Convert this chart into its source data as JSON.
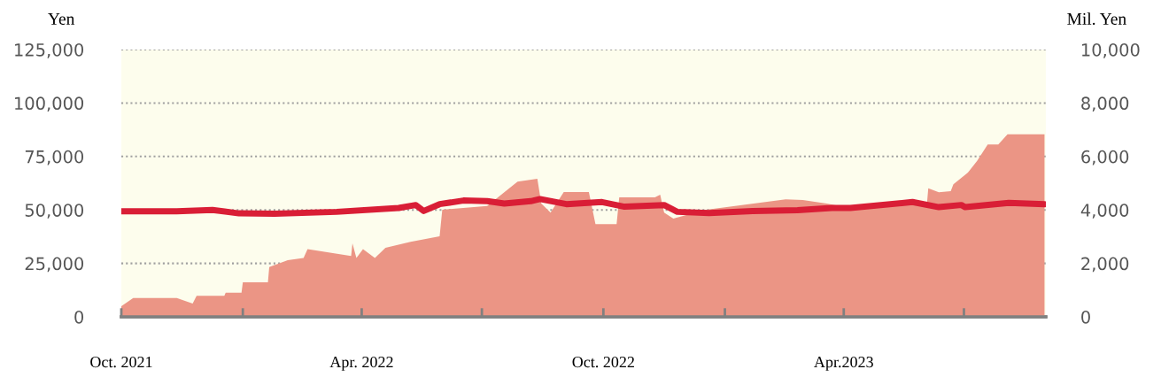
{
  "chart_data": {
    "type": "area",
    "ylabel": "Yen",
    "y2label": "Mil. Yen",
    "xlim": [
      "2021-10-01",
      "2023-09-01"
    ],
    "xticks": [
      {
        "value": "2021-10-01",
        "label": "Oct. 2021"
      },
      {
        "value": "2022-01-01",
        "label": null
      },
      {
        "value": "2022-04-01",
        "label": "Apr. 2022"
      },
      {
        "value": "2022-07-01",
        "label": null
      },
      {
        "value": "2022-10-01",
        "label": "Oct. 2022"
      },
      {
        "value": "2023-01-01",
        "label": null
      },
      {
        "value": "2023-04-01",
        "label": "Apr.2023"
      },
      {
        "value": "2023-07-01",
        "label": null
      }
    ],
    "ylim": [
      0,
      125000
    ],
    "yticks": [
      {
        "value": 0,
        "label": "0"
      },
      {
        "value": 25000,
        "label": "25,000"
      },
      {
        "value": 50000,
        "label": "50,000"
      },
      {
        "value": 75000,
        "label": "75,000"
      },
      {
        "value": 100000,
        "label": "100,000"
      },
      {
        "value": 125000,
        "label": "125,000"
      }
    ],
    "y2lim": [
      0,
      10000
    ],
    "y2ticks": [
      {
        "value": 0,
        "label": "0"
      },
      {
        "value": 2000,
        "label": "2,000"
      },
      {
        "value": 4000,
        "label": "4,000"
      },
      {
        "value": 6000,
        "label": "6,000"
      },
      {
        "value": 8000,
        "label": "8,000"
      },
      {
        "value": 10000,
        "label": "10,000"
      }
    ],
    "grid": "y",
    "legend": false,
    "series": [
      {
        "axis": "y2",
        "color": "#eb9585",
        "x": [
          "2021-10-01",
          "2021-10-10",
          "2021-11-12",
          "2021-11-24",
          "2021-11-27",
          "2021-12-18",
          "2021-12-19",
          "2021-12-31",
          "2022-01-01",
          "2022-01-20",
          "2022-01-21",
          "2022-02-04",
          "2022-02-16",
          "2022-02-19",
          "2022-03-24",
          "2022-03-25",
          "2022-03-28",
          "2022-04-02",
          "2022-04-11",
          "2022-04-19",
          "2022-05-08",
          "2022-05-30",
          "2022-06-01",
          "2022-07-05",
          "2022-07-28",
          "2022-08-12",
          "2022-08-15",
          "2022-08-22",
          "2022-09-01",
          "2022-09-20",
          "2022-09-25",
          "2022-10-11",
          "2022-10-13",
          "2022-11-09",
          "2022-11-13",
          "2022-11-16",
          "2022-11-23",
          "2022-12-18",
          "2023-02-16",
          "2023-03-01",
          "2023-03-19",
          "2023-04-06",
          "2023-06-03",
          "2023-06-04",
          "2023-06-12",
          "2023-06-21",
          "2023-06-23",
          "2023-07-04",
          "2023-07-11",
          "2023-07-19",
          "2023-07-27",
          "2023-08-03",
          "2023-08-31"
        ],
        "values": [
          400,
          700,
          700,
          500,
          790,
          790,
          900,
          900,
          1290,
          1290,
          1860,
          2120,
          2200,
          2530,
          2280,
          2750,
          2200,
          2530,
          2200,
          2580,
          2810,
          3010,
          4010,
          4150,
          5060,
          5170,
          4240,
          3900,
          4670,
          4670,
          3470,
          3470,
          4470,
          4470,
          4570,
          3900,
          3680,
          4010,
          4400,
          4370,
          4240,
          4070,
          4240,
          4810,
          4660,
          4700,
          4960,
          5400,
          5840,
          6450,
          6450,
          6830,
          6830
        ]
      },
      {
        "type": "line",
        "axis": "y",
        "color": "#d91e36",
        "x": [
          "2021-10-01",
          "2021-11-12",
          "2021-12-09",
          "2021-12-29",
          "2022-01-25",
          "2022-03-13",
          "2022-04-29",
          "2022-05-12",
          "2022-05-18",
          "2022-05-30",
          "2022-06-17",
          "2022-07-05",
          "2022-07-18",
          "2022-08-07",
          "2022-08-14",
          "2022-09-03",
          "2022-09-30",
          "2022-10-17",
          "2022-11-16",
          "2022-11-26",
          "2022-12-20",
          "2023-01-22",
          "2023-02-25",
          "2023-03-23",
          "2023-04-06",
          "2023-05-23",
          "2023-06-12",
          "2023-06-29",
          "2023-07-02",
          "2023-08-04",
          "2023-08-31"
        ],
        "values": [
          49400,
          49400,
          50000,
          48400,
          48200,
          49100,
          50900,
          52300,
          49500,
          52700,
          54400,
          54100,
          53000,
          54100,
          55100,
          52700,
          53700,
          51500,
          52300,
          49100,
          48500,
          49500,
          49900,
          50900,
          50900,
          53700,
          51300,
          52300,
          51300,
          53300,
          52700
        ]
      }
    ]
  }
}
